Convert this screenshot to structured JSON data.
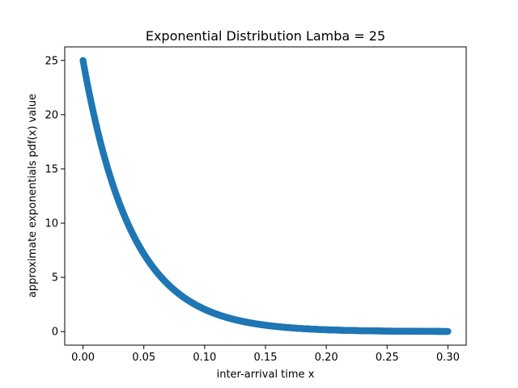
{
  "chart_data": {
    "type": "scatter",
    "title": "Exponential Distribution Lamba = 25",
    "xlabel": "inter-arrival time x",
    "ylabel": "approximate exponentials pdf(x) value",
    "lambda": 25,
    "x_range": [
      0.0,
      0.3
    ],
    "xlim": [
      -0.015,
      0.315
    ],
    "ylim": [
      -1.25,
      26.25
    ],
    "xticks": [
      0.0,
      0.05,
      0.1,
      0.15,
      0.2,
      0.25,
      0.3
    ],
    "xtick_labels": [
      "0.00",
      "0.05",
      "0.10",
      "0.15",
      "0.20",
      "0.25",
      "0.30"
    ],
    "yticks": [
      0,
      5,
      10,
      15,
      20,
      25
    ],
    "ytick_labels": [
      "0",
      "5",
      "10",
      "15",
      "20",
      "25"
    ],
    "grid": false,
    "marker_color": "#1f77b4",
    "series": [
      {
        "x": [
          0.0,
          0.01,
          0.02,
          0.03,
          0.04,
          0.05,
          0.06,
          0.07,
          0.08,
          0.09,
          0.1,
          0.11,
          0.12,
          0.13,
          0.14,
          0.15,
          0.16,
          0.17,
          0.18,
          0.19,
          0.2,
          0.21,
          0.22,
          0.23,
          0.24,
          0.25,
          0.26,
          0.27,
          0.28,
          0.29,
          0.3
        ],
        "y": [
          25.0,
          19.47,
          15.16,
          11.81,
          9.2,
          7.16,
          5.58,
          4.34,
          3.38,
          2.64,
          2.05,
          1.6,
          1.24,
          0.97,
          0.75,
          0.59,
          0.46,
          0.36,
          0.28,
          0.22,
          0.17,
          0.13,
          0.1,
          0.08,
          0.06,
          0.05,
          0.04,
          0.03,
          0.02,
          0.02,
          0.01
        ]
      }
    ]
  }
}
